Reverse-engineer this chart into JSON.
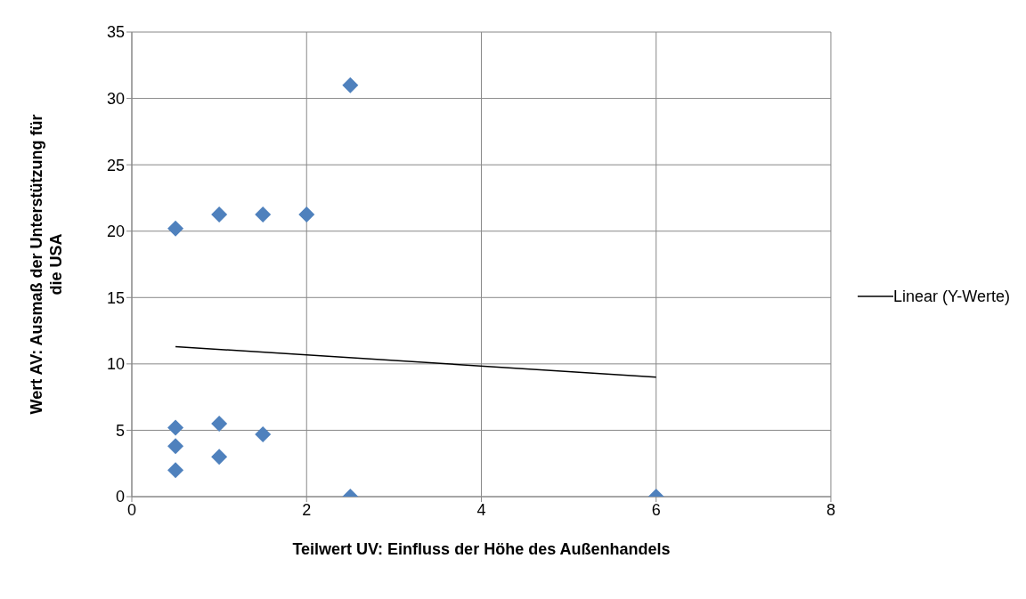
{
  "chart_data": {
    "type": "scatter",
    "xlabel": "Teilwert UV: Einfluss der Höhe des Außenhandels",
    "ylabel": "Wert AV: Ausmaß der Unterstützung für die USA",
    "xlim": [
      0,
      8
    ],
    "xticks": [
      0,
      2,
      4,
      6,
      8
    ],
    "ylim": [
      0,
      35
    ],
    "yticks": [
      0,
      5,
      10,
      15,
      20,
      25,
      30,
      35
    ],
    "grid": true,
    "legend": "right",
    "series": [
      {
        "marker": "diamond",
        "color": "#4f81bd",
        "x": [
          0.5,
          1,
          1.5,
          2,
          2.5,
          0.5,
          0.5,
          0.5,
          1,
          1,
          1.5,
          2.5,
          6
        ],
        "values": [
          20.2,
          21.25,
          21.25,
          21.25,
          31,
          5.2,
          3.8,
          2,
          5.5,
          3,
          4.7,
          0,
          0
        ]
      },
      {
        "type": "line",
        "marker": "none",
        "name": "Linear (Y-Werte)",
        "color": "#000000",
        "x": [
          0.5,
          6
        ],
        "values": [
          11.3,
          9
        ]
      }
    ]
  }
}
